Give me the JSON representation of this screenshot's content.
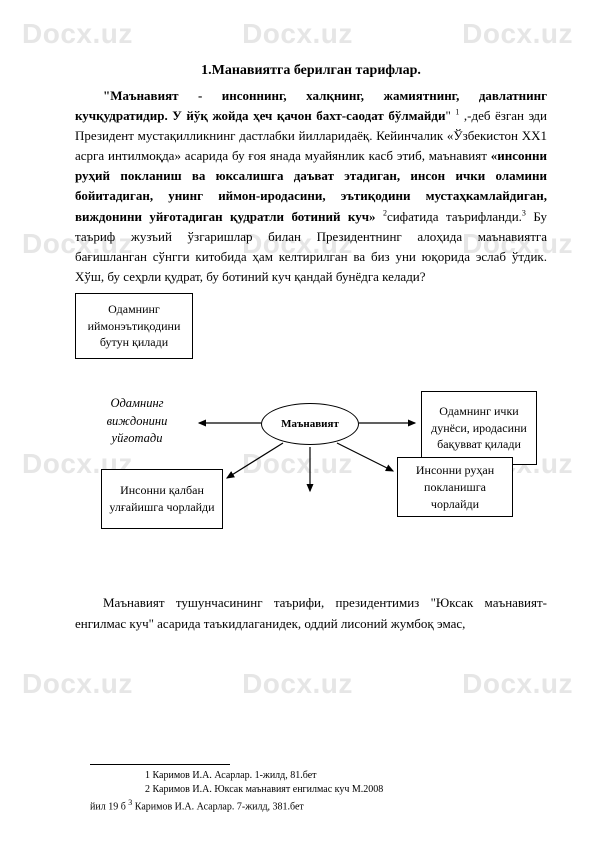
{
  "watermark": "Docx.uz",
  "wm_rows_y": [
    18,
    228,
    448,
    668
  ],
  "title": "1.Манавиятга берилган тарифлар.",
  "para_segments": [
    {
      "t": "\"Маънавият - инсоннинг, халқнинг, жамиятнинг, давлатнинг кучқудратидир. У йўқ жойда ҳеч қачон бахт-саодат бўлмайди",
      "b": true
    },
    {
      "t": "\" ",
      "b": false
    },
    {
      "t": "1",
      "sup": true
    },
    {
      "t": " ,-деб ёзган эди Президент мустақилликнинг дастлабки йилларидаёқ. Кейинчалик «Ўзбекистон XX1 асрга интилмоқда» асарида бу ғоя янада муайянлик касб этиб, маънавият ",
      "b": false
    },
    {
      "t": "«инсонни руҳий покланиш ва юксалишга даъват этадиган, инсон ички оламини бойитадиган, унинг иймон-иродасини, эътиқодини мустаҳкамлайдиган, виждонини уйғотадиган қудратли ботиний куч» ",
      "b": true
    },
    {
      "t": "2",
      "sup": true
    },
    {
      "t": "сифатида таърифланди.",
      "b": false
    },
    {
      "t": "3",
      "sup": true
    },
    {
      "t": " Бу таъриф жузъий ўзгаришлар билан Президентнинг алоҳида маънавиятга бағишланган сўнгги китобида ҳам келтирилган ва биз уни юқорида эслаб ўтдик. Хўш, бу сеҳрли қудрат, бу ботиний куч қандай бунёдга келади?",
      "b": false
    }
  ],
  "diagram": {
    "box_top": "Одамнинг иймонэътиқодини бутун қилади",
    "center": "Маънавият",
    "left_italic": "Одамнинг виждонини уйғотади",
    "right_box": "Одамнинг ички дунёси, иродасини бақувват қилади",
    "bl_box": "Инсонни қалбан улғайишга чорлайди",
    "br_box": "Инсонни руҳан покланишга чорлайди",
    "line_color": "#000000"
  },
  "bottom_para": "Маънавият тушунчасининг таърифи, президентимиз \"Юксак маънавият-енгилмас куч\" асарида таъкидлаганидек, оддий лисоний жумбоқ эмас,",
  "footnotes": {
    "f1": "1 Каримов И.А. Асарлар. 1-жилд, 81.бет",
    "f2": "2 Каримов И.А. Юксак маънавият енгилмас куч М.2008",
    "f3_pre": "йил 19 б ",
    "f3_sup": "3",
    "f3_post": " Каримов И.А. Асарлар. 7-жилд,  381.бет"
  }
}
